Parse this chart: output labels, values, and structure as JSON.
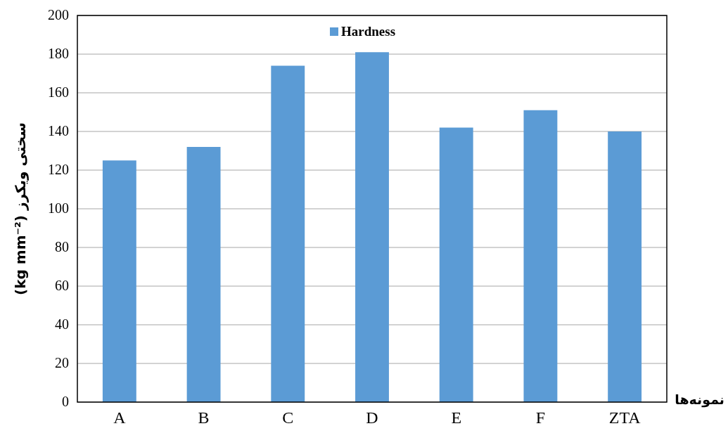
{
  "chart_data": {
    "type": "bar",
    "xlabel": "نمونه‌ها",
    "ylabel": "سختی ویکرز (kg mm⁻²)",
    "categories": [
      "A",
      "B",
      "C",
      "D",
      "E",
      "F",
      "ZTA"
    ],
    "series": [
      {
        "name": "Hardness",
        "color": "#5b9bd5",
        "values": [
          125,
          132,
          174,
          181,
          142,
          151,
          140
        ]
      }
    ],
    "ylim": [
      0,
      200
    ],
    "yticks": [
      0,
      20,
      40,
      60,
      80,
      100,
      120,
      140,
      160,
      180,
      200
    ],
    "grid": "y",
    "legend": "top"
  }
}
